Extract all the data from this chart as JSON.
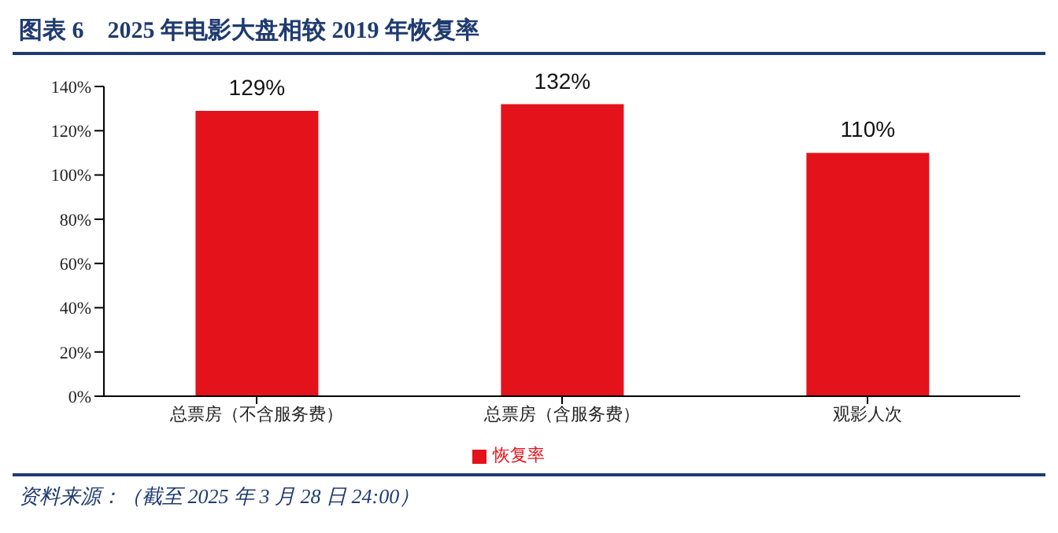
{
  "chart_data": {
    "type": "bar",
    "title": "图表 6　2025 年电影大盘相较 2019 年恢复率",
    "categories": [
      "总票房（不含服务费）",
      "总票房（含服务费）",
      "观影人次"
    ],
    "series": [
      {
        "name": "恢复率",
        "color": "#e3121b",
        "values": [
          129,
          132,
          110
        ],
        "value_labels": [
          "129%",
          "132%",
          "110%"
        ]
      }
    ],
    "ylim": [
      0,
      140
    ],
    "yticks": [
      {
        "value": 0,
        "label": "0%"
      },
      {
        "value": 20,
        "label": "20%"
      },
      {
        "value": 40,
        "label": "40%"
      },
      {
        "value": 60,
        "label": "60%"
      },
      {
        "value": 80,
        "label": "80%"
      },
      {
        "value": 100,
        "label": "100%"
      },
      {
        "value": 120,
        "label": "120%"
      },
      {
        "value": 140,
        "label": "140%"
      }
    ],
    "grid": false,
    "legend": "bottom",
    "annotations": [
      "资料来源：（截至 2025 年 3 月 28 日 24:00）"
    ]
  }
}
